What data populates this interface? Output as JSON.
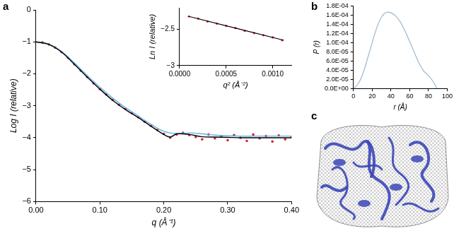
{
  "chart_data": [
    {
      "type": "line",
      "title": "a",
      "x_label": "q (Å⁻¹)",
      "y_label": "Log I (relative)",
      "xlim": [
        0,
        0.4
      ],
      "xticks": [
        {
          "value": 0,
          "label": "0.00"
        },
        {
          "value": 0.1,
          "label": "0.10"
        },
        {
          "value": 0.2,
          "label": "0.20"
        },
        {
          "value": 0.3,
          "label": "0.30"
        },
        {
          "value": 0.4,
          "label": "0.40"
        }
      ],
      "ylim": [
        -6,
        0
      ],
      "yticks": [
        {
          "value": -6,
          "label": "−6"
        },
        {
          "value": -5,
          "label": "−5"
        },
        {
          "value": -4,
          "label": "−4"
        },
        {
          "value": -3,
          "label": "−3"
        },
        {
          "value": -2,
          "label": "−2"
        },
        {
          "value": -1,
          "label": "−1"
        },
        0
      ],
      "grid": false,
      "series": [
        {
          "type": "line",
          "color": "#000000",
          "line_style": "solid",
          "x": [
            0,
            0.02,
            0.04,
            0.06,
            0.08,
            0.1,
            0.12,
            0.14,
            0.16,
            0.18,
            0.2,
            0.21,
            0.22,
            0.24,
            0.26,
            0.28,
            0.3,
            0.32,
            0.34,
            0.36,
            0.38,
            0.4
          ],
          "values": [
            -1.0,
            -1.08,
            -1.32,
            -1.7,
            -2.1,
            -2.48,
            -2.83,
            -3.12,
            -3.37,
            -3.64,
            -3.9,
            -3.98,
            -3.88,
            -3.9,
            -3.97,
            -3.98,
            -3.99,
            -4.0,
            -4.0,
            -4.0,
            -4.0,
            -4.0
          ]
        },
        {
          "type": "line",
          "color": "#5bb5e8",
          "line_style": "solid",
          "x": [
            0,
            0.02,
            0.04,
            0.06,
            0.08,
            0.1,
            0.12,
            0.14,
            0.16,
            0.18,
            0.2,
            0.22,
            0.24,
            0.26,
            0.28,
            0.3,
            0.32,
            0.34,
            0.36,
            0.38,
            0.4
          ],
          "values": [
            -1.0,
            -1.07,
            -1.3,
            -1.66,
            -2.05,
            -2.42,
            -2.76,
            -3.06,
            -3.32,
            -3.58,
            -3.8,
            -3.87,
            -3.85,
            -3.88,
            -3.92,
            -3.94,
            -3.95,
            -3.95,
            -3.95,
            -3.95,
            -3.95
          ]
        },
        {
          "type": "scatter",
          "color": "#e0202a",
          "marker": "circle",
          "x": [
            0.01,
            0.02,
            0.03,
            0.04,
            0.05,
            0.06,
            0.07,
            0.08,
            0.09,
            0.1,
            0.11,
            0.12,
            0.13,
            0.14,
            0.15,
            0.16,
            0.17,
            0.18,
            0.19,
            0.2,
            0.21,
            0.22,
            0.23,
            0.24,
            0.25,
            0.26,
            0.27,
            0.28,
            0.29,
            0.3,
            0.31,
            0.32,
            0.33,
            0.34,
            0.35,
            0.36,
            0.37,
            0.38,
            0.39,
            0.4
          ],
          "values": [
            -1.02,
            -1.08,
            -1.18,
            -1.32,
            -1.5,
            -1.7,
            -1.9,
            -2.1,
            -2.3,
            -2.48,
            -2.65,
            -2.82,
            -2.97,
            -3.1,
            -3.23,
            -3.36,
            -3.5,
            -3.63,
            -3.76,
            -3.88,
            -4.0,
            -3.9,
            -3.85,
            -3.92,
            -3.98,
            -4.05,
            -3.9,
            -4.02,
            -3.95,
            -4.08,
            -3.92,
            -4.0,
            -4.1,
            -3.9,
            -4.02,
            -3.95,
            -4.12,
            -3.93,
            -4.05,
            -3.98
          ]
        }
      ]
    },
    {
      "type": "line",
      "x_label": "q² (Å⁻²)",
      "y_label": "Ln I (relative)",
      "xlim": [
        0,
        0.0012
      ],
      "xticks": [
        {
          "value": 0,
          "label": "0.0000"
        },
        {
          "value": 0.0005,
          "label": "0.0005"
        },
        {
          "value": 0.001,
          "label": "0.0010"
        }
      ],
      "ylim": [
        -3,
        -2.2
      ],
      "yticks": [
        {
          "value": -3,
          "label": "−3"
        },
        {
          "value": -2.5,
          "label": "−2.5"
        }
      ],
      "grid": false,
      "series": [
        {
          "type": "line",
          "color": "#000000",
          "line_style": "solid",
          "x": [
            0.0001,
            0.00112
          ],
          "values": [
            -2.32,
            -2.65
          ]
        },
        {
          "type": "scatter",
          "color": "#e0202a",
          "marker": "circle",
          "x": [
            0.0001,
            0.0002,
            0.0003,
            0.0004,
            0.0005,
            0.0006,
            0.0007,
            0.0008,
            0.0009,
            0.001,
            0.0011
          ],
          "values": [
            -2.32,
            -2.35,
            -2.39,
            -2.42,
            -2.45,
            -2.48,
            -2.52,
            -2.55,
            -2.58,
            -2.61,
            -2.65
          ]
        }
      ]
    },
    {
      "type": "line",
      "title": "b",
      "x_label": "r (Å)",
      "y_label": "P (r)",
      "xlim": [
        0,
        100
      ],
      "xticks": [
        0,
        20,
        40,
        60,
        80,
        100
      ],
      "ylim": [
        0,
        0.00018
      ],
      "yticks": [
        {
          "value": 0,
          "label": "0.0E+00"
        },
        {
          "value": 2e-05,
          "label": "2.0E-05"
        },
        {
          "value": 4e-05,
          "label": "4.0E-05"
        },
        {
          "value": 6e-05,
          "label": "6.0E-05"
        },
        {
          "value": 8e-05,
          "label": "8.0E-05"
        },
        {
          "value": 0.0001,
          "label": "1.0E-04"
        },
        {
          "value": 0.00012,
          "label": "1.2E-04"
        },
        {
          "value": 0.00014,
          "label": "1.4E-04"
        },
        {
          "value": 0.00016,
          "label": "1.6E-04"
        },
        {
          "value": 0.00018,
          "label": "1.8E-04"
        }
      ],
      "grid": false,
      "series": [
        {
          "type": "line",
          "color": "#9ab8d0",
          "line_style": "solid",
          "x": [
            0,
            5,
            10,
            15,
            20,
            25,
            30,
            35,
            40,
            45,
            50,
            55,
            60,
            65,
            70,
            75,
            80,
            85,
            89
          ],
          "values": [
            0,
            1e-05,
            3.2e-05,
            6.5e-05,
            0.0001,
            0.000133,
            0.000156,
            0.000166,
            0.000165,
            0.000158,
            0.000145,
            0.000125,
            0.000102,
            7.8e-05,
            5.5e-05,
            3.8e-05,
            2.8e-05,
            1.5e-05,
            0
          ]
        }
      ]
    }
  ],
  "image_panel": {
    "label": "c"
  }
}
